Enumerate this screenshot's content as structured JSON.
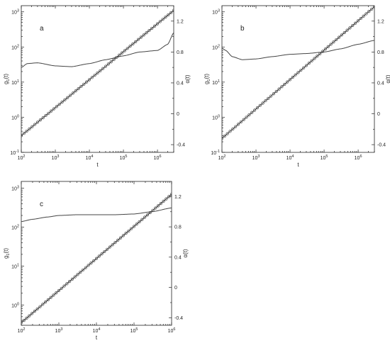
{
  "chart_data": [
    {
      "type": "line",
      "panel_label": "a",
      "xlabel": "t",
      "ylabel_left": "g1(t)",
      "ylabel_right": "α(t)",
      "x_scale": "log",
      "x_range": [
        100,
        3000000
      ],
      "y_left_scale": "log",
      "y_left_range": [
        0.1,
        1500
      ],
      "y_right_range": [
        -0.5,
        1.4
      ],
      "x_ticks": [
        {
          "v": 100,
          "e": "2"
        },
        {
          "v": 1000,
          "e": "3"
        },
        {
          "v": 10000,
          "e": "4"
        },
        {
          "v": 100000,
          "e": "5"
        },
        {
          "v": 1000000,
          "e": "6"
        }
      ],
      "y_left_ticks": [
        {
          "v": 0.1,
          "e": "-1"
        },
        {
          "v": 1,
          "e": "0"
        },
        {
          "v": 10,
          "e": "1"
        },
        {
          "v": 100,
          "e": "2"
        },
        {
          "v": 1000,
          "e": "3"
        }
      ],
      "y_right_ticks": [
        {
          "v": -0.4,
          "t": "-0.4"
        },
        {
          "v": 0,
          "t": "0"
        },
        {
          "v": 0.4,
          "t": "0.4"
        },
        {
          "v": 0.8,
          "t": "0.8"
        },
        {
          "v": 1.2,
          "t": "1.2"
        }
      ],
      "series": [
        {
          "axis": "left",
          "style": "circles-line",
          "x": [
            100,
            3000000
          ],
          "y": [
            0.3,
            1100
          ]
        },
        {
          "axis": "right",
          "style": "line",
          "x": [
            100,
            150,
            300,
            1000,
            3000,
            10000,
            30000,
            100000,
            300000,
            1000000,
            2000000,
            3000000
          ],
          "y": [
            0.6,
            0.65,
            0.66,
            0.62,
            0.61,
            0.65,
            0.7,
            0.75,
            0.8,
            0.82,
            0.9,
            1.05
          ]
        }
      ]
    },
    {
      "type": "line",
      "panel_label": "b",
      "xlabel": "t",
      "ylabel_left": "g1(t)",
      "ylabel_right": "α(t)",
      "x_scale": "log",
      "x_range": [
        100,
        3000000
      ],
      "y_left_scale": "log",
      "y_left_range": [
        0.1,
        1500
      ],
      "y_right_range": [
        -0.5,
        1.4
      ],
      "x_ticks": [
        {
          "v": 100,
          "e": "2"
        },
        {
          "v": 1000,
          "e": "3"
        },
        {
          "v": 10000,
          "e": "4"
        },
        {
          "v": 100000,
          "e": "5"
        },
        {
          "v": 1000000,
          "e": "6"
        }
      ],
      "y_left_ticks": [
        {
          "v": 0.1,
          "e": "-1"
        },
        {
          "v": 1,
          "e": "0"
        },
        {
          "v": 10,
          "e": "1"
        },
        {
          "v": 100,
          "e": "2"
        },
        {
          "v": 1000,
          "e": "3"
        }
      ],
      "y_right_ticks": [
        {
          "v": -0.4,
          "t": "-0.4"
        },
        {
          "v": 0,
          "t": "0"
        },
        {
          "v": 0.4,
          "t": "0.4"
        },
        {
          "v": 0.8,
          "t": "0.8"
        },
        {
          "v": 1.2,
          "t": "1.2"
        }
      ],
      "series": [
        {
          "axis": "left",
          "style": "circles-line",
          "x": [
            100,
            3000000
          ],
          "y": [
            0.25,
            1400
          ]
        },
        {
          "axis": "right",
          "style": "line",
          "x": [
            100,
            130,
            200,
            400,
            1000,
            3000,
            10000,
            30000,
            100000,
            300000,
            1000000,
            3000000
          ],
          "y": [
            0.85,
            0.82,
            0.74,
            0.7,
            0.71,
            0.74,
            0.77,
            0.78,
            0.8,
            0.84,
            0.9,
            0.95
          ]
        }
      ]
    },
    {
      "type": "line",
      "panel_label": "c",
      "xlabel": "t",
      "ylabel_left": "g1(t)",
      "ylabel_right": "α(t)",
      "x_scale": "log",
      "x_range": [
        100,
        1000000
      ],
      "y_left_scale": "log",
      "y_left_range": [
        0.3,
        1500
      ],
      "y_right_range": [
        -0.5,
        1.4
      ],
      "x_ticks": [
        {
          "v": 100,
          "e": "2"
        },
        {
          "v": 1000,
          "e": "3"
        },
        {
          "v": 10000,
          "e": "4"
        },
        {
          "v": 100000,
          "e": "5"
        },
        {
          "v": 1000000,
          "e": "6"
        }
      ],
      "y_left_ticks": [
        {
          "v": 1,
          "e": "0"
        },
        {
          "v": 10,
          "e": "1"
        },
        {
          "v": 100,
          "e": "2"
        },
        {
          "v": 1000,
          "e": "3"
        }
      ],
      "y_right_ticks": [
        {
          "v": -0.4,
          "t": "-0.4"
        },
        {
          "v": 0,
          "t": "0"
        },
        {
          "v": 0.4,
          "t": "0.4"
        },
        {
          "v": 0.8,
          "t": "0.8"
        },
        {
          "v": 1.2,
          "t": "1.2"
        }
      ],
      "series": [
        {
          "axis": "left",
          "style": "circles-line",
          "x": [
            100,
            1000000
          ],
          "y": [
            0.35,
            700
          ]
        },
        {
          "axis": "right",
          "style": "line",
          "x": [
            100,
            200,
            500,
            1000,
            3000,
            10000,
            30000,
            100000,
            300000,
            1000000
          ],
          "y": [
            0.87,
            0.9,
            0.93,
            0.95,
            0.96,
            0.96,
            0.96,
            0.97,
            1.0,
            1.05
          ]
        }
      ]
    }
  ]
}
